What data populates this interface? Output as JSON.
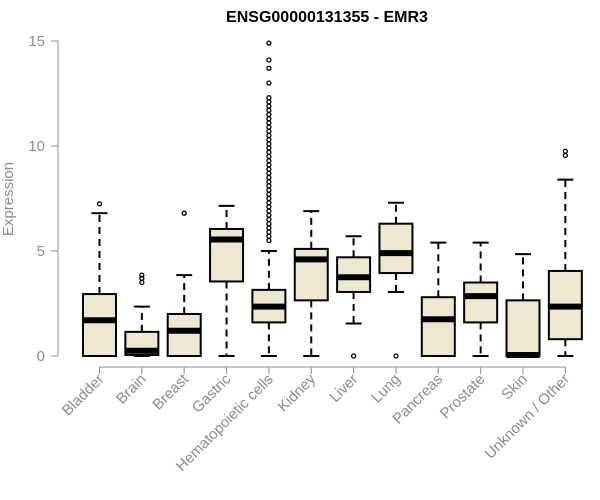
{
  "chart_data": {
    "type": "boxplot",
    "title": "ENSG00000131355 - EMR3",
    "xlabel": "",
    "ylabel": "Expression",
    "ylim": [
      0,
      15
    ],
    "yticks": [
      0,
      5,
      10,
      15
    ],
    "grid": false,
    "box_fill": "#eee8d0",
    "categories": [
      "Bladder",
      "Brain",
      "Breast",
      "Gastric",
      "Hematopoietic cells",
      "Kidney",
      "Liver",
      "Lung",
      "Pancreas",
      "Prostate",
      "Skin",
      "Unknown / Other"
    ],
    "boxes": [
      {
        "whisker_low": 0,
        "q1": 0,
        "median": 1.7,
        "q3": 2.95,
        "whisker_high": 6.8,
        "outliers": [
          7.25
        ]
      },
      {
        "whisker_low": 0,
        "q1": 0.05,
        "median": 0.25,
        "q3": 1.15,
        "whisker_high": 2.35,
        "outliers": [
          3.5,
          3.7,
          3.85
        ]
      },
      {
        "whisker_low": 0,
        "q1": 0,
        "median": 1.2,
        "q3": 2.0,
        "whisker_high": 3.85,
        "outliers": [
          6.8
        ]
      },
      {
        "whisker_low": 0,
        "q1": 3.55,
        "median": 5.55,
        "q3": 6.05,
        "whisker_high": 7.15,
        "outliers": []
      },
      {
        "whisker_low": 0,
        "q1": 1.6,
        "median": 2.35,
        "q3": 3.15,
        "whisker_high": 5.0,
        "outliers": [
          5.5,
          5.7,
          5.9,
          6.1,
          6.3,
          6.5,
          6.7,
          6.9,
          7.1,
          7.3,
          7.5,
          7.7,
          7.9,
          8.1,
          8.3,
          8.5,
          8.7,
          8.9,
          9.1,
          9.3,
          9.5,
          9.7,
          9.9,
          10.1,
          10.3,
          10.5,
          10.7,
          10.9,
          11.1,
          11.3,
          11.5,
          11.7,
          11.9,
          12.1,
          12.3,
          13.0,
          13.7,
          14.1,
          14.9
        ]
      },
      {
        "whisker_low": 0,
        "q1": 2.65,
        "median": 4.6,
        "q3": 5.1,
        "whisker_high": 6.9,
        "outliers": []
      },
      {
        "whisker_low": 1.55,
        "q1": 3.05,
        "median": 3.75,
        "q3": 4.7,
        "whisker_high": 5.7,
        "outliers": [
          0
        ]
      },
      {
        "whisker_low": 3.05,
        "q1": 3.95,
        "median": 4.9,
        "q3": 6.3,
        "whisker_high": 7.3,
        "outliers": [
          0
        ]
      },
      {
        "whisker_low": 0,
        "q1": 0,
        "median": 1.75,
        "q3": 2.8,
        "whisker_high": 5.4,
        "outliers": []
      },
      {
        "whisker_low": 0,
        "q1": 1.6,
        "median": 2.85,
        "q3": 3.5,
        "whisker_high": 5.4,
        "outliers": []
      },
      {
        "whisker_low": 0,
        "q1": 0,
        "median": 0.05,
        "q3": 2.65,
        "whisker_high": 4.85,
        "outliers": []
      },
      {
        "whisker_low": 0,
        "q1": 0.8,
        "median": 2.35,
        "q3": 4.05,
        "whisker_high": 8.4,
        "outliers": [
          9.55,
          9.75
        ]
      }
    ]
  }
}
